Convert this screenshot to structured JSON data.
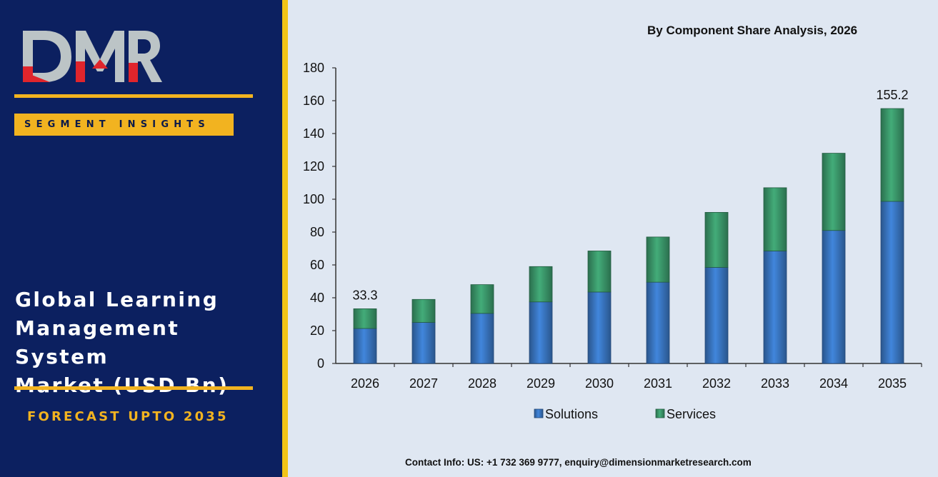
{
  "branding": {
    "logo_text": "DMR",
    "segment_badge": "SEGMENT INSIGHTS",
    "panel_title_lines": [
      "Global Learning",
      "Management System",
      "Market (USD Bn)"
    ],
    "forecast_label": "FORECAST UPTO 2035",
    "colors": {
      "panel_bg": "#0c2060",
      "accent_gold": "#f2b320",
      "logo_gray": "#bcc4c6",
      "logo_red": "#e0252c"
    }
  },
  "chart_title": "By Component Share Analysis, 2026",
  "contact_info": "Contact Info: US: +1 732 369 9777, enquiry@dimensionmarketresearch.com",
  "chart_data": {
    "type": "bar",
    "stacked": true,
    "title": "By Component Share Analysis, 2026",
    "categories": [
      "2026",
      "2027",
      "2028",
      "2029",
      "2030",
      "2031",
      "2032",
      "2033",
      "2034",
      "2035"
    ],
    "series": [
      {
        "name": "Solutions",
        "color": "#3a78c4",
        "values": [
          21.3,
          25.0,
          30.5,
          37.5,
          43.5,
          49.5,
          58.5,
          68.5,
          81.0,
          98.7
        ]
      },
      {
        "name": "Services",
        "color": "#3c9a6c",
        "values": [
          12.0,
          14.0,
          17.5,
          21.5,
          25.0,
          27.5,
          33.5,
          38.5,
          47.0,
          56.5
        ]
      }
    ],
    "data_labels": [
      {
        "category": "2026",
        "text": "33.3"
      },
      {
        "category": "2035",
        "text": "155.2"
      }
    ],
    "yticks": [
      "0",
      "20",
      "40",
      "60",
      "80",
      "100",
      "120",
      "140",
      "160",
      "180"
    ],
    "ylim": [
      0,
      180
    ],
    "grid": false,
    "legend_position": "bottom"
  }
}
